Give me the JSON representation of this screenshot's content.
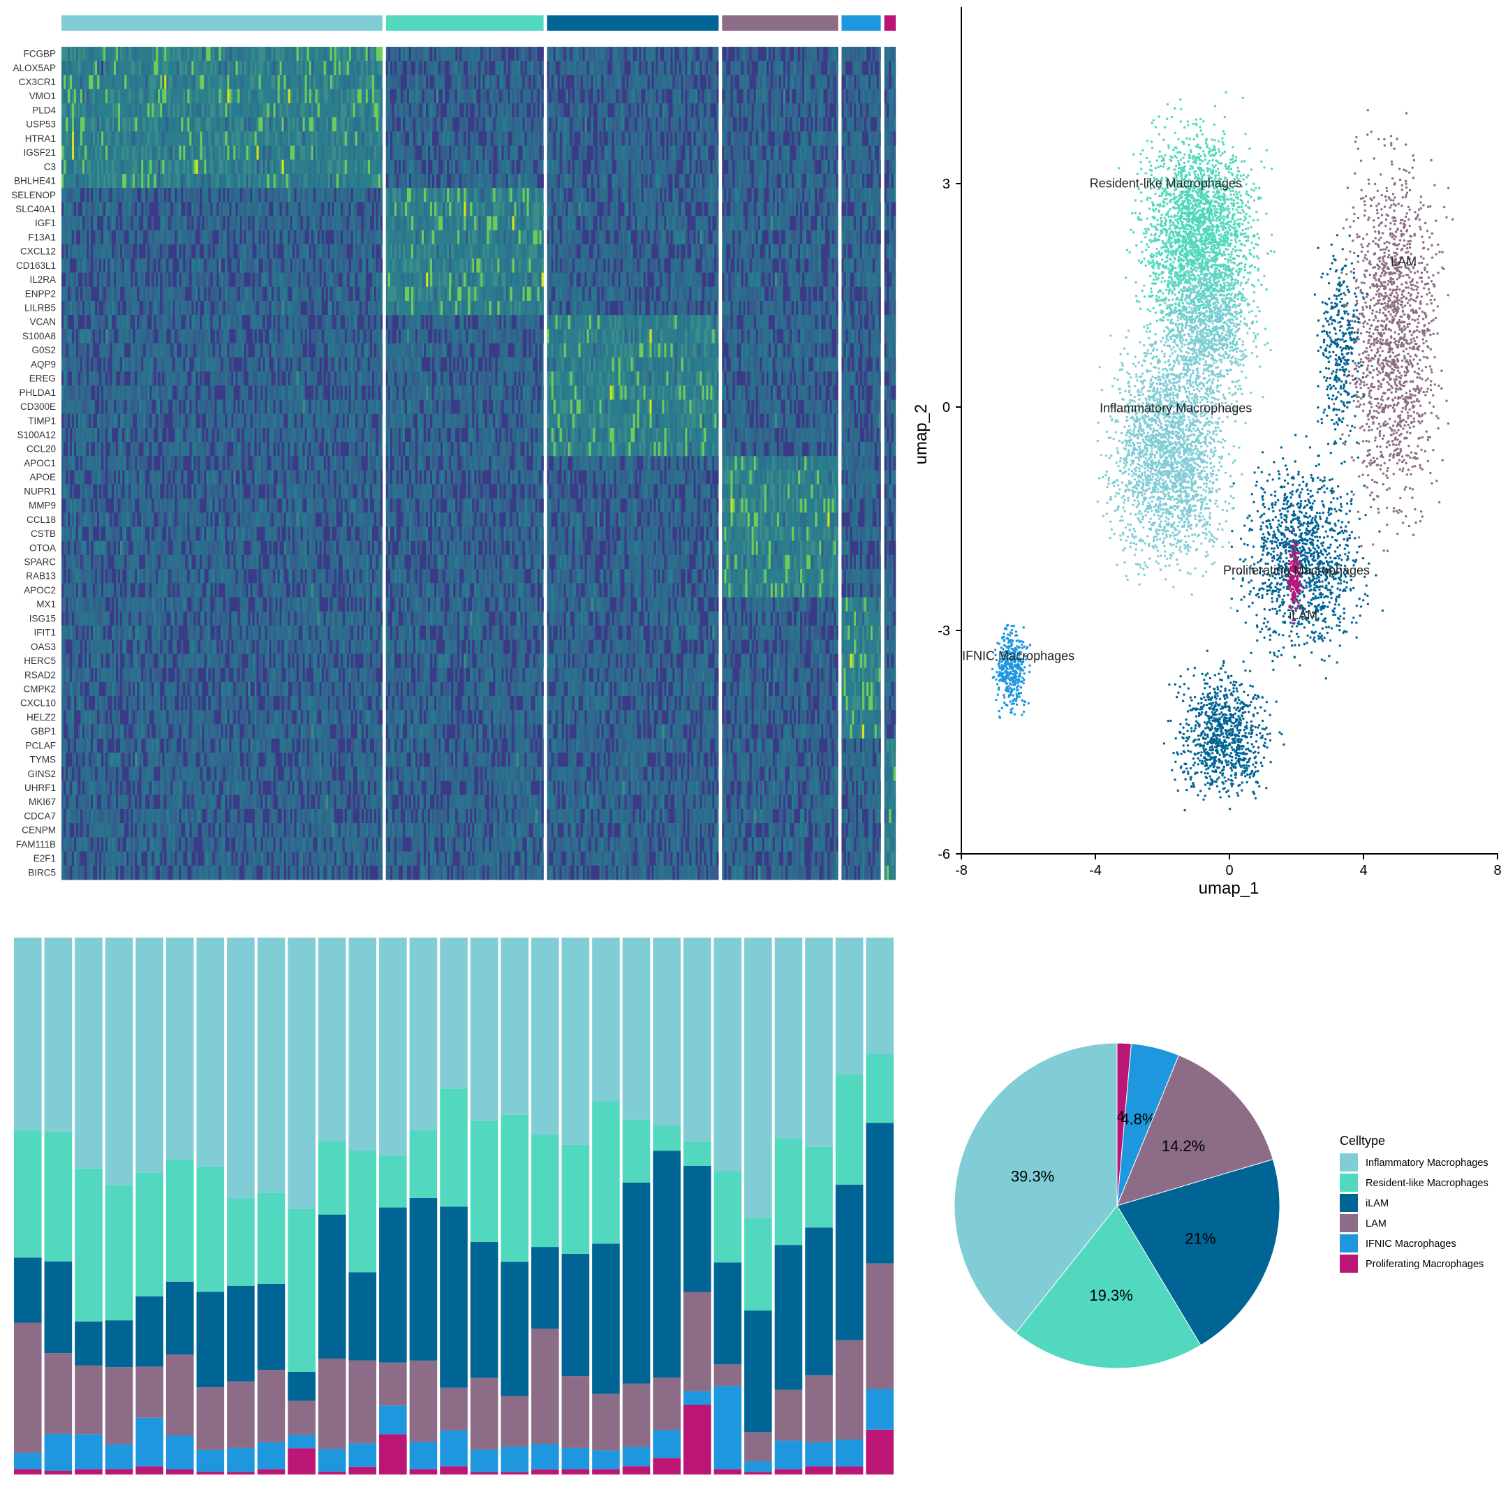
{
  "celltypes": [
    {
      "name": "Inflammatory Macrophages",
      "color": "#80CDD6"
    },
    {
      "name": "Resident-like Macrophages",
      "color": "#52D8BE"
    },
    {
      "name": "iLAM",
      "color": "#006495"
    },
    {
      "name": "LAM",
      "color": "#8C6C86"
    },
    {
      "name": "IFNIC Macrophages",
      "color": "#1E97DE"
    },
    {
      "name": "Proliferating Macrophages",
      "color": "#BB1575"
    }
  ],
  "chart_data": [
    {
      "type": "heatmap",
      "genes": [
        "FCGBP",
        "ALOX5AP",
        "CX3CR1",
        "VMO1",
        "PLD4",
        "USP53",
        "HTRA1",
        "IGSF21",
        "C3",
        "BHLHE41",
        "SELENOP",
        "SLC40A1",
        "IGF1",
        "F13A1",
        "CXCL12",
        "CD163L1",
        "IL2RA",
        "ENPP2",
        "LILRB5",
        "VCAN",
        "S100A8",
        "G0S2",
        "AQP9",
        "EREG",
        "PHLDA1",
        "CD300E",
        "TIMP1",
        "S100A12",
        "CCL20",
        "APOC1",
        "APOE",
        "NUPR1",
        "MMP9",
        "CCL18",
        "CSTB",
        "OTOA",
        "SPARC",
        "RAB13",
        "APOC2",
        "MX1",
        "ISG15",
        "IFIT1",
        "OAS3",
        "HERC5",
        "RSAD2",
        "CMPK2",
        "CXCL10",
        "HELZ2",
        "GBP1",
        "PCLAF",
        "TYMS",
        "GINS2",
        "UHRF1",
        "MKI67",
        "CDCA7",
        "CENPM",
        "FAM111B",
        "E2F1",
        "BIRC5"
      ],
      "gene_groups": [
        10,
        9,
        10,
        10,
        10,
        10
      ],
      "group_order": [
        "Inflammatory Macrophages",
        "Resident-like Macrophages",
        "iLAM",
        "LAM",
        "IFNIC Macrophages",
        "Proliferating Macrophages"
      ],
      "group_sizes": [
        39.3,
        19.3,
        21.0,
        14.2,
        4.8,
        1.4
      ],
      "scale_colors": [
        "#440154",
        "#3B528B",
        "#2C728E",
        "#21908D",
        "#5DC863",
        "#FDE725"
      ]
    },
    {
      "type": "scatter",
      "xlabel": "umap_1",
      "ylabel": "umap_2",
      "xlim": [
        -8,
        8
      ],
      "ylim": [
        -6,
        5.7
      ],
      "xticks": [
        "-8",
        "-4",
        "0",
        "4",
        "8"
      ],
      "yticks": [
        "-6",
        "-3",
        "0",
        "3"
      ],
      "cluster_labels": [
        {
          "text": "Resident-like Macrophages",
          "x": -1.9,
          "y": 2.95
        },
        {
          "text": "LAM",
          "x": 5.2,
          "y": 1.9
        },
        {
          "text": "Inflammatory Macrophages",
          "x": -1.6,
          "y": -0.07
        },
        {
          "text": "Proliferating Macrophages",
          "x": 2.0,
          "y": -2.25
        },
        {
          "text": "iLAM",
          "x": 2.2,
          "y": -2.85
        },
        {
          "text": "IFNIC Macrophages",
          "x": -6.3,
          "y": -3.4
        }
      ]
    },
    {
      "type": "bar",
      "stacked": true,
      "normalized": true,
      "series_order": [
        "Inflammatory Macrophages",
        "Resident-like Macrophages",
        "iLAM",
        "LAM",
        "IFNIC Macrophages",
        "Proliferating Macrophages"
      ],
      "values": [
        [
          35.5,
          23.5,
          12.0,
          24.0,
          3.0,
          1.0
        ],
        [
          36.0,
          24.0,
          17.0,
          15.0,
          6.8,
          0.7
        ],
        [
          43.0,
          28.5,
          8.2,
          12.8,
          6.5,
          1.0
        ],
        [
          45.0,
          24.5,
          8.5,
          14.0,
          4.5,
          1.0
        ],
        [
          43.5,
          23.0,
          13.0,
          9.5,
          9.0,
          1.5
        ],
        [
          42.5,
          23.5,
          14.0,
          15.5,
          6.5,
          1.0
        ],
        [
          42.0,
          23.0,
          17.5,
          11.5,
          4.0,
          0.5
        ],
        [
          49.0,
          16.5,
          18.0,
          12.5,
          4.5,
          0.5
        ],
        [
          47.5,
          17.0,
          16.0,
          13.5,
          5.0,
          1.0
        ],
        [
          51.5,
          31.0,
          5.5,
          6.5,
          2.5,
          5.0
        ],
        [
          36.0,
          13.0,
          25.5,
          16.0,
          4.0,
          0.5
        ],
        [
          41.0,
          23.5,
          17.0,
          16.0,
          4.5,
          1.5
        ],
        [
          38.0,
          9.0,
          27.0,
          7.5,
          5.0,
          7.0
        ],
        [
          35.5,
          12.5,
          30.0,
          15.0,
          5.0,
          1.0
        ],
        [
          27.5,
          21.5,
          33.0,
          7.8,
          6.5,
          1.5
        ],
        [
          37.0,
          24.5,
          27.5,
          14.5,
          4.5,
          0.5
        ],
        [
          35.0,
          29.0,
          26.5,
          10.0,
          5.0,
          0.5
        ],
        [
          38.5,
          22.0,
          16.0,
          22.5,
          5.0,
          1.0
        ],
        [
          39.0,
          20.5,
          23.0,
          13.5,
          4.0,
          1.0
        ],
        [
          30.5,
          26.5,
          28.0,
          10.5,
          3.5,
          1.0
        ],
        [
          33.0,
          11.5,
          36.5,
          11.5,
          3.5,
          1.5
        ],
        [
          34.0,
          4.5,
          41.0,
          9.5,
          5.0,
          3.0
        ],
        [
          38.0,
          4.5,
          23.5,
          18.5,
          2.5,
          13.0
        ],
        [
          43.5,
          17.0,
          19.0,
          4.0,
          15.5,
          1.0
        ],
        [
          53.0,
          17.5,
          23.0,
          5.5,
          2.0,
          0.5
        ],
        [
          37.5,
          19.8,
          27.0,
          9.5,
          5.3,
          1.0
        ],
        [
          39.0,
          15.0,
          27.5,
          12.5,
          4.5,
          1.5
        ],
        [
          25.5,
          20.5,
          29.0,
          18.5,
          5.0,
          1.5
        ],
        [
          19.5,
          11.5,
          23.5,
          21.0,
          6.8,
          7.5
        ]
      ]
    },
    {
      "type": "pie",
      "legend_title": "Celltype",
      "legend_position": "right",
      "labels": [
        "Proliferating Macrophages",
        "IFNIC Macrophages",
        "LAM",
        "iLAM",
        "Resident-like Macrophages",
        "Inflammatory Macrophages"
      ],
      "values": [
        1.4,
        4.8,
        14.2,
        21.0,
        19.3,
        39.3
      ],
      "value_labels": [
        "1.4%",
        "4.8%",
        "14.2%",
        "21%",
        "19.3%",
        "39.3%"
      ]
    }
  ]
}
